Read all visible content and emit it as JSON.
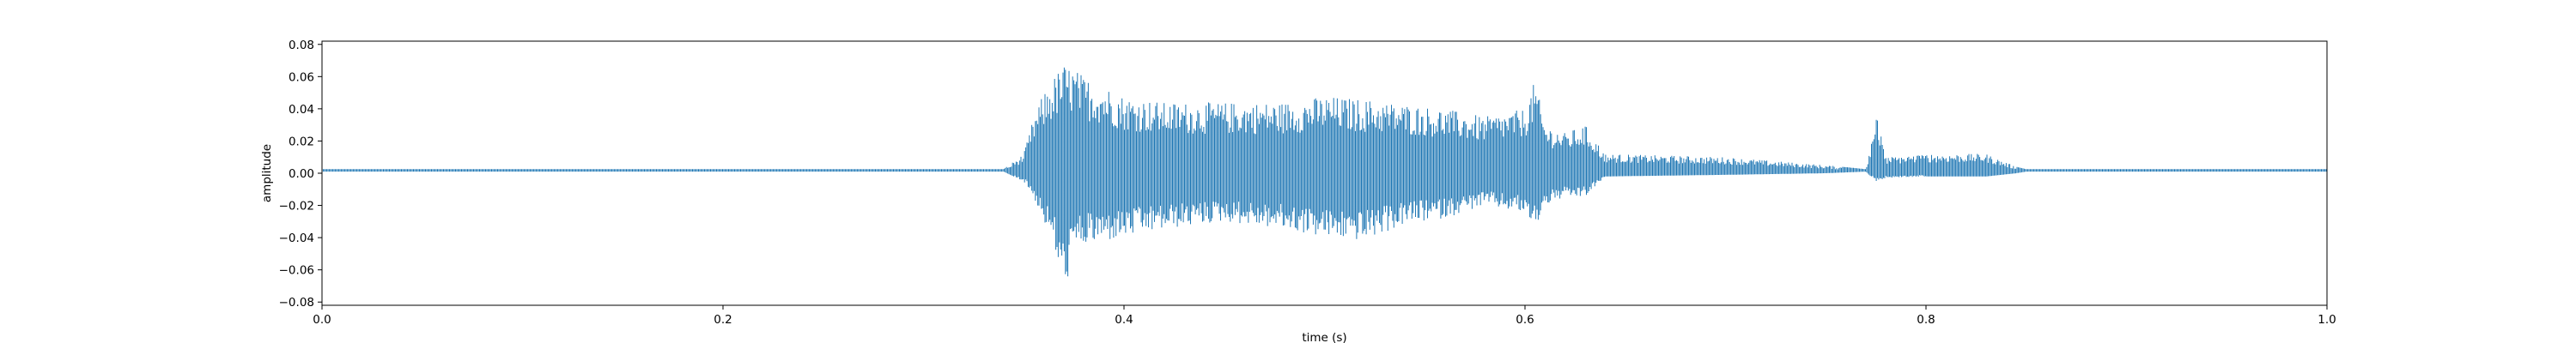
{
  "chart_data": {
    "type": "line",
    "xlabel": "time (s)",
    "ylabel": "amplitude",
    "xlim": [
      0.0,
      1.0
    ],
    "ylim": [
      -0.082,
      0.082
    ],
    "xticks": [
      0.0,
      0.2,
      0.4,
      0.6,
      0.8,
      1.0
    ],
    "xtick_labels": [
      "0.0",
      "0.2",
      "0.4",
      "0.6",
      "0.8",
      "1.0"
    ],
    "yticks": [
      -0.08,
      -0.06,
      -0.04,
      -0.02,
      0.0,
      0.02,
      0.04,
      0.06,
      0.08
    ],
    "ytick_labels": [
      "−0.08",
      "−0.06",
      "−0.04",
      "−0.02",
      "0.00",
      "0.02",
      "0.04",
      "0.06",
      "0.08"
    ],
    "grid": false,
    "line_color": "#1f77b4",
    "series": [
      {
        "description": "waveform envelope (approximate), [time, max amplitude, min amplitude]",
        "envelope": [
          [
            0.0,
            0.0025,
            0.001
          ],
          [
            0.34,
            0.0025,
            0.001
          ],
          [
            0.35,
            0.012,
            -0.005
          ],
          [
            0.355,
            0.035,
            -0.015
          ],
          [
            0.36,
            0.05,
            -0.03
          ],
          [
            0.365,
            0.06,
            -0.045
          ],
          [
            0.37,
            0.068,
            -0.075
          ],
          [
            0.375,
            0.066,
            -0.05
          ],
          [
            0.38,
            0.06,
            -0.045
          ],
          [
            0.39,
            0.055,
            -0.043
          ],
          [
            0.4,
            0.048,
            -0.04
          ],
          [
            0.42,
            0.044,
            -0.035
          ],
          [
            0.45,
            0.044,
            -0.03
          ],
          [
            0.48,
            0.044,
            -0.035
          ],
          [
            0.5,
            0.048,
            -0.04
          ],
          [
            0.52,
            0.046,
            -0.042
          ],
          [
            0.54,
            0.043,
            -0.032
          ],
          [
            0.56,
            0.04,
            -0.028
          ],
          [
            0.58,
            0.035,
            -0.02
          ],
          [
            0.6,
            0.04,
            -0.025
          ],
          [
            0.605,
            0.058,
            -0.035
          ],
          [
            0.61,
            0.03,
            -0.02
          ],
          [
            0.62,
            0.025,
            -0.015
          ],
          [
            0.63,
            0.03,
            -0.015
          ],
          [
            0.64,
            0.012,
            -0.002
          ],
          [
            0.7,
            0.01,
            -0.001
          ],
          [
            0.75,
            0.005,
            0.0
          ],
          [
            0.77,
            0.0025,
            0.001
          ],
          [
            0.775,
            0.038,
            -0.005
          ],
          [
            0.78,
            0.01,
            -0.003
          ],
          [
            0.8,
            0.012,
            -0.002
          ],
          [
            0.83,
            0.012,
            -0.002
          ],
          [
            0.845,
            0.004,
            0.0
          ],
          [
            0.85,
            0.0025,
            0.001
          ],
          [
            1.0,
            0.0025,
            0.001
          ]
        ]
      }
    ]
  }
}
